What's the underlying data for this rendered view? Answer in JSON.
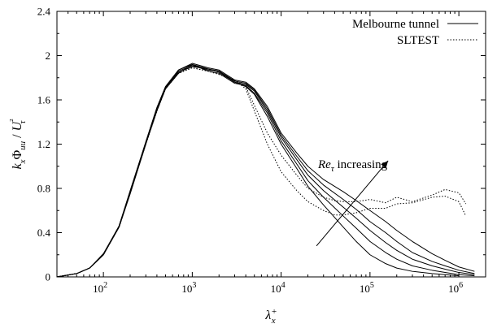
{
  "chart_data": {
    "type": "line",
    "title": "",
    "xlabel": "λx+",
    "ylabel": "kxΦuu/Uτ²",
    "xscale": "log",
    "xlim": [
      30,
      2000000
    ],
    "ylim": [
      0,
      2.4
    ],
    "xticks": [
      {
        "value": 100,
        "base": "10",
        "exp": "2"
      },
      {
        "value": 1000,
        "base": "10",
        "exp": "3"
      },
      {
        "value": 10000,
        "base": "10",
        "exp": "4"
      },
      {
        "value": 100000,
        "base": "10",
        "exp": "5"
      },
      {
        "value": 1000000,
        "base": "10",
        "exp": "6"
      }
    ],
    "yticks": [
      {
        "value": 0,
        "label": "0"
      },
      {
        "value": 0.4,
        "label": "0.4"
      },
      {
        "value": 0.8,
        "label": "0.8"
      },
      {
        "value": 1.2,
        "label": "1.2"
      },
      {
        "value": 1.6,
        "label": "1.6"
      },
      {
        "value": 2.0,
        "label": "2"
      },
      {
        "value": 2.4,
        "label": "2.4"
      }
    ],
    "grid": false,
    "legend": {
      "position": "top-right",
      "entries": [
        {
          "label": "Melbourne tunnel",
          "style": "solid"
        },
        {
          "label": "SLTEST",
          "style": "dotted"
        }
      ]
    },
    "annotation": {
      "text_italic": "Re",
      "text_subscript": "τ",
      "text_rest": " increasing",
      "arrow_from": [
        25000,
        0.28
      ],
      "arrow_to": [
        160000,
        1.05
      ]
    },
    "series": [
      {
        "style": "solid",
        "points": [
          [
            30,
            0
          ],
          [
            50,
            0.03
          ],
          [
            70,
            0.08
          ],
          [
            100,
            0.2
          ],
          [
            150,
            0.45
          ],
          [
            200,
            0.75
          ],
          [
            300,
            1.2
          ],
          [
            400,
            1.5
          ],
          [
            500,
            1.7
          ],
          [
            700,
            1.85
          ],
          [
            1000,
            1.9
          ],
          [
            1500,
            1.88
          ],
          [
            2000,
            1.85
          ],
          [
            3000,
            1.76
          ],
          [
            4000,
            1.72
          ],
          [
            5000,
            1.65
          ],
          [
            7000,
            1.45
          ],
          [
            10000,
            1.2
          ],
          [
            15000,
            0.98
          ],
          [
            20000,
            0.82
          ],
          [
            30000,
            0.65
          ],
          [
            50000,
            0.45
          ],
          [
            70000,
            0.32
          ],
          [
            100000,
            0.2
          ],
          [
            150000,
            0.12
          ],
          [
            200000,
            0.08
          ],
          [
            300000,
            0.05
          ],
          [
            500000,
            0.03
          ],
          [
            700000,
            0.02
          ],
          [
            1000000,
            0.01
          ]
        ]
      },
      {
        "style": "solid",
        "points": [
          [
            30,
            0
          ],
          [
            50,
            0.03
          ],
          [
            70,
            0.08
          ],
          [
            100,
            0.2
          ],
          [
            150,
            0.45
          ],
          [
            200,
            0.76
          ],
          [
            300,
            1.2
          ],
          [
            400,
            1.52
          ],
          [
            500,
            1.7
          ],
          [
            700,
            1.84
          ],
          [
            1000,
            1.92
          ],
          [
            1500,
            1.86
          ],
          [
            2000,
            1.84
          ],
          [
            3000,
            1.75
          ],
          [
            4000,
            1.73
          ],
          [
            5000,
            1.66
          ],
          [
            7000,
            1.48
          ],
          [
            10000,
            1.23
          ],
          [
            15000,
            1.02
          ],
          [
            20000,
            0.87
          ],
          [
            30000,
            0.72
          ],
          [
            50000,
            0.55
          ],
          [
            70000,
            0.44
          ],
          [
            100000,
            0.32
          ],
          [
            150000,
            0.22
          ],
          [
            200000,
            0.16
          ],
          [
            300000,
            0.1
          ],
          [
            500000,
            0.06
          ],
          [
            700000,
            0.04
          ],
          [
            1000000,
            0.02
          ],
          [
            1500000,
            0.01
          ]
        ]
      },
      {
        "style": "solid",
        "points": [
          [
            30,
            0
          ],
          [
            50,
            0.03
          ],
          [
            70,
            0.08
          ],
          [
            100,
            0.2
          ],
          [
            150,
            0.46
          ],
          [
            200,
            0.77
          ],
          [
            300,
            1.21
          ],
          [
            400,
            1.52
          ],
          [
            500,
            1.71
          ],
          [
            700,
            1.86
          ],
          [
            1000,
            1.91
          ],
          [
            1500,
            1.87
          ],
          [
            2000,
            1.86
          ],
          [
            3000,
            1.76
          ],
          [
            4000,
            1.74
          ],
          [
            5000,
            1.68
          ],
          [
            7000,
            1.5
          ],
          [
            10000,
            1.26
          ],
          [
            15000,
            1.06
          ],
          [
            20000,
            0.92
          ],
          [
            30000,
            0.78
          ],
          [
            50000,
            0.63
          ],
          [
            70000,
            0.53
          ],
          [
            100000,
            0.42
          ],
          [
            150000,
            0.31
          ],
          [
            200000,
            0.24
          ],
          [
            300000,
            0.16
          ],
          [
            500000,
            0.1
          ],
          [
            700000,
            0.07
          ],
          [
            1000000,
            0.04
          ],
          [
            1500000,
            0.02
          ]
        ]
      },
      {
        "style": "solid",
        "points": [
          [
            30,
            0
          ],
          [
            50,
            0.03
          ],
          [
            70,
            0.08
          ],
          [
            100,
            0.2
          ],
          [
            150,
            0.46
          ],
          [
            200,
            0.77
          ],
          [
            300,
            1.22
          ],
          [
            400,
            1.53
          ],
          [
            500,
            1.72
          ],
          [
            700,
            1.87
          ],
          [
            1000,
            1.92
          ],
          [
            1500,
            1.88
          ],
          [
            2000,
            1.86
          ],
          [
            3000,
            1.77
          ],
          [
            4000,
            1.75
          ],
          [
            5000,
            1.69
          ],
          [
            7000,
            1.52
          ],
          [
            10000,
            1.28
          ],
          [
            15000,
            1.09
          ],
          [
            20000,
            0.96
          ],
          [
            30000,
            0.83
          ],
          [
            50000,
            0.7
          ],
          [
            70000,
            0.61
          ],
          [
            100000,
            0.5
          ],
          [
            150000,
            0.4
          ],
          [
            200000,
            0.32
          ],
          [
            300000,
            0.22
          ],
          [
            500000,
            0.14
          ],
          [
            700000,
            0.1
          ],
          [
            1000000,
            0.06
          ],
          [
            1500000,
            0.03
          ]
        ]
      },
      {
        "style": "solid",
        "points": [
          [
            30,
            0
          ],
          [
            50,
            0.03
          ],
          [
            70,
            0.08
          ],
          [
            100,
            0.21
          ],
          [
            150,
            0.46
          ],
          [
            200,
            0.78
          ],
          [
            300,
            1.22
          ],
          [
            400,
            1.53
          ],
          [
            500,
            1.72
          ],
          [
            700,
            1.87
          ],
          [
            1000,
            1.93
          ],
          [
            1500,
            1.89
          ],
          [
            2000,
            1.87
          ],
          [
            3000,
            1.78
          ],
          [
            4000,
            1.76
          ],
          [
            5000,
            1.7
          ],
          [
            7000,
            1.54
          ],
          [
            10000,
            1.3
          ],
          [
            15000,
            1.12
          ],
          [
            20000,
            1.0
          ],
          [
            30000,
            0.88
          ],
          [
            50000,
            0.77
          ],
          [
            70000,
            0.69
          ],
          [
            100000,
            0.6
          ],
          [
            150000,
            0.5
          ],
          [
            200000,
            0.42
          ],
          [
            300000,
            0.32
          ],
          [
            500000,
            0.21
          ],
          [
            700000,
            0.15
          ],
          [
            1000000,
            0.09
          ],
          [
            1500000,
            0.05
          ]
        ]
      },
      {
        "style": "dotted",
        "points": [
          [
            30,
            0
          ],
          [
            50,
            0.03
          ],
          [
            70,
            0.08
          ],
          [
            100,
            0.2
          ],
          [
            150,
            0.45
          ],
          [
            200,
            0.76
          ],
          [
            300,
            1.2
          ],
          [
            400,
            1.5
          ],
          [
            500,
            1.7
          ],
          [
            700,
            1.84
          ],
          [
            1000,
            1.89
          ],
          [
            1500,
            1.86
          ],
          [
            2000,
            1.83
          ],
          [
            3000,
            1.78
          ],
          [
            4000,
            1.72
          ],
          [
            5000,
            1.55
          ],
          [
            7000,
            1.3
          ],
          [
            10000,
            1.1
          ],
          [
            15000,
            0.92
          ],
          [
            20000,
            0.8
          ],
          [
            30000,
            0.72
          ],
          [
            40000,
            0.69
          ],
          [
            50000,
            0.68
          ],
          [
            70000,
            0.68
          ],
          [
            100000,
            0.7
          ],
          [
            150000,
            0.67
          ],
          [
            200000,
            0.72
          ],
          [
            300000,
            0.68
          ],
          [
            500000,
            0.74
          ],
          [
            700000,
            0.79
          ],
          [
            1000000,
            0.76
          ],
          [
            1200000,
            0.66
          ]
        ]
      },
      {
        "style": "dotted",
        "points": [
          [
            30,
            0
          ],
          [
            50,
            0.03
          ],
          [
            70,
            0.08
          ],
          [
            100,
            0.2
          ],
          [
            150,
            0.45
          ],
          [
            200,
            0.76
          ],
          [
            300,
            1.2
          ],
          [
            400,
            1.5
          ],
          [
            500,
            1.7
          ],
          [
            700,
            1.84
          ],
          [
            1000,
            1.89
          ],
          [
            1500,
            1.86
          ],
          [
            2000,
            1.83
          ],
          [
            3000,
            1.78
          ],
          [
            4000,
            1.7
          ],
          [
            5000,
            1.5
          ],
          [
            7000,
            1.2
          ],
          [
            10000,
            0.95
          ],
          [
            15000,
            0.78
          ],
          [
            20000,
            0.68
          ],
          [
            30000,
            0.6
          ],
          [
            40000,
            0.56
          ],
          [
            50000,
            0.56
          ],
          [
            70000,
            0.58
          ],
          [
            100000,
            0.62
          ],
          [
            150000,
            0.62
          ],
          [
            200000,
            0.66
          ],
          [
            300000,
            0.67
          ],
          [
            500000,
            0.72
          ],
          [
            700000,
            0.73
          ],
          [
            1000000,
            0.68
          ],
          [
            1200000,
            0.55
          ]
        ]
      }
    ]
  }
}
